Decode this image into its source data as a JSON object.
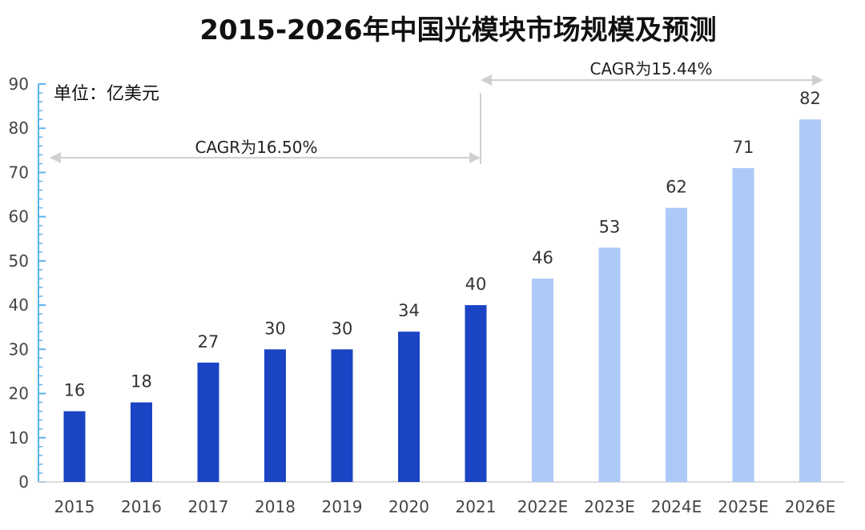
{
  "chart_data": {
    "type": "bar",
    "title": "2015-2026年中国光模块市场规模及预测",
    "unit_label": "单位：亿美元",
    "categories": [
      "2015",
      "2016",
      "2017",
      "2018",
      "2019",
      "2020",
      "2021",
      "2022E",
      "2023E",
      "2024E",
      "2025E",
      "2026E"
    ],
    "values": [
      16,
      18,
      27,
      30,
      30,
      34,
      40,
      46,
      53,
      62,
      71,
      82
    ],
    "labels": [
      "16",
      "18",
      "27",
      "30",
      "30",
      "34",
      "40",
      "46",
      "53",
      "62",
      "71",
      "82"
    ],
    "ylim": [
      0,
      90
    ],
    "yticks": [
      0,
      10,
      20,
      30,
      40,
      50,
      60,
      70,
      80,
      90
    ],
    "grid": false,
    "colors": {
      "actual": "#1a44c4",
      "forecast": "#adc9f8",
      "axis": "#5bb4ec",
      "arrow": "#d0d0d0"
    },
    "forecast_start_index": 7,
    "annotations": [
      {
        "text": "CAGR为16.50%",
        "from": "2015",
        "to": "2021"
      },
      {
        "text": "CAGR为15.44%",
        "from": "2021",
        "to": "2026E"
      }
    ]
  }
}
